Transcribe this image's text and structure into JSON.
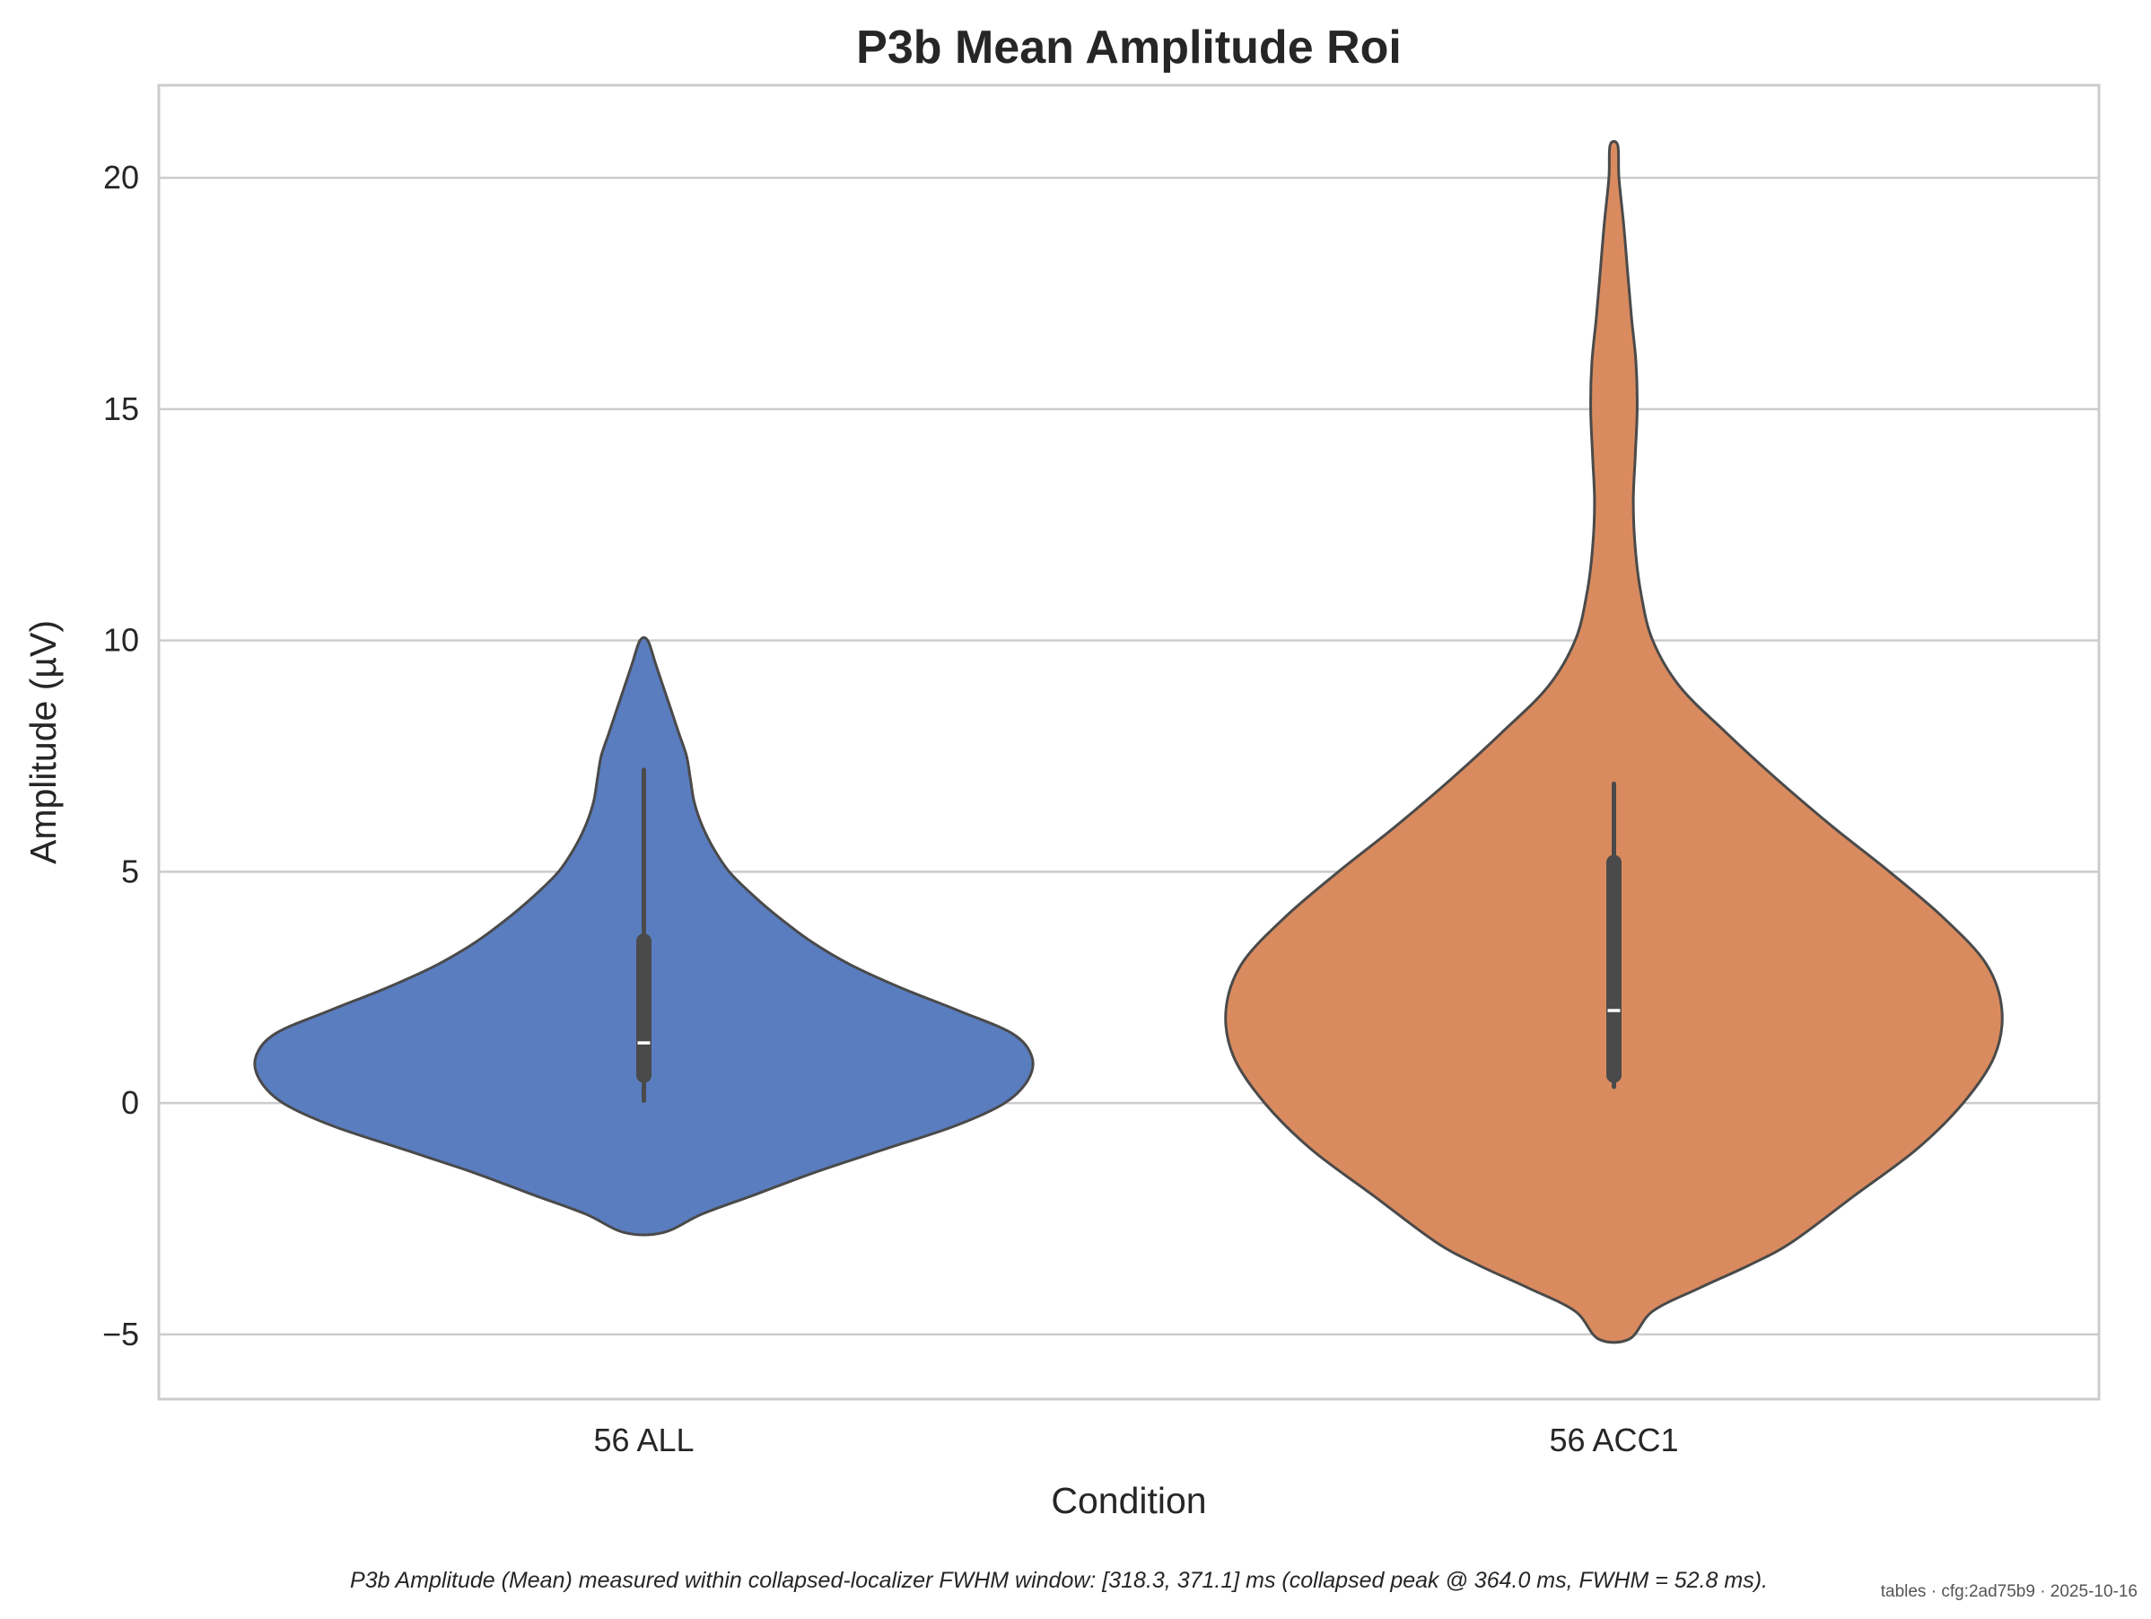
{
  "chart_data": {
    "type": "violin",
    "title": "P3b Mean Amplitude Roi",
    "xlabel": "Condition",
    "ylabel": "Amplitude (µV)",
    "ylim": [
      -6.4,
      22
    ],
    "yticks": [
      -5,
      0,
      5,
      10,
      15,
      20
    ],
    "ytick_labels": [
      "−5",
      "0",
      "5",
      "10",
      "15",
      "20"
    ],
    "grid": "horizontal",
    "categories": [
      "56 ALL",
      "56 ACC1"
    ],
    "colors": [
      "#5a7dbf",
      "#d98b5f"
    ],
    "violins": [
      {
        "category": "56 ALL",
        "min": -2.8,
        "max": 10.0,
        "whisker_low": 0.05,
        "whisker_high": 7.2,
        "q1": 0.6,
        "median": 1.3,
        "q3": 3.5,
        "density": [
          [
            -2.8,
            0.05
          ],
          [
            -2.4,
            0.15
          ],
          [
            -2.0,
            0.28
          ],
          [
            -1.5,
            0.44
          ],
          [
            -1.0,
            0.62
          ],
          [
            -0.5,
            0.8
          ],
          [
            0.0,
            0.93
          ],
          [
            0.5,
            0.99
          ],
          [
            1.0,
            1.0
          ],
          [
            1.5,
            0.95
          ],
          [
            2.0,
            0.81
          ],
          [
            2.5,
            0.66
          ],
          [
            3.0,
            0.53
          ],
          [
            3.5,
            0.43
          ],
          [
            4.0,
            0.35
          ],
          [
            4.5,
            0.28
          ],
          [
            5.0,
            0.22
          ],
          [
            5.5,
            0.18
          ],
          [
            6.0,
            0.15
          ],
          [
            6.5,
            0.13
          ],
          [
            7.0,
            0.12
          ],
          [
            7.5,
            0.11
          ],
          [
            8.0,
            0.09
          ],
          [
            8.5,
            0.07
          ],
          [
            9.0,
            0.05
          ],
          [
            9.5,
            0.03
          ],
          [
            10.0,
            0.01
          ]
        ]
      },
      {
        "category": "56 ACC1",
        "min": -5.1,
        "max": 20.7,
        "whisker_low": 0.35,
        "whisker_high": 6.9,
        "q1": 0.6,
        "median": 2.0,
        "q3": 5.2,
        "density": [
          [
            -5.1,
            0.04
          ],
          [
            -4.5,
            0.1
          ],
          [
            -4.0,
            0.22
          ],
          [
            -3.5,
            0.35
          ],
          [
            -3.0,
            0.46
          ],
          [
            -2.0,
            0.62
          ],
          [
            -1.0,
            0.78
          ],
          [
            0.0,
            0.9
          ],
          [
            1.0,
            0.98
          ],
          [
            2.0,
            1.0
          ],
          [
            3.0,
            0.96
          ],
          [
            4.0,
            0.85
          ],
          [
            5.0,
            0.71
          ],
          [
            6.0,
            0.56
          ],
          [
            7.0,
            0.42
          ],
          [
            8.0,
            0.29
          ],
          [
            9.0,
            0.17
          ],
          [
            10.0,
            0.1
          ],
          [
            11.0,
            0.07
          ],
          [
            12.0,
            0.055
          ],
          [
            13.0,
            0.05
          ],
          [
            14.0,
            0.055
          ],
          [
            15.0,
            0.06
          ],
          [
            16.0,
            0.057
          ],
          [
            17.0,
            0.045
          ],
          [
            18.0,
            0.035
          ],
          [
            19.0,
            0.025
          ],
          [
            20.0,
            0.013
          ],
          [
            20.7,
            0.01
          ]
        ]
      }
    ]
  },
  "caption": "P3b Amplitude (Mean) measured within collapsed-localizer FWHM window: [318.3, 371.1] ms (collapsed peak @ 364.0 ms, FWHM = 52.8 ms).",
  "footer": "tables · cfg:2ad75b9 · 2025-10-16"
}
